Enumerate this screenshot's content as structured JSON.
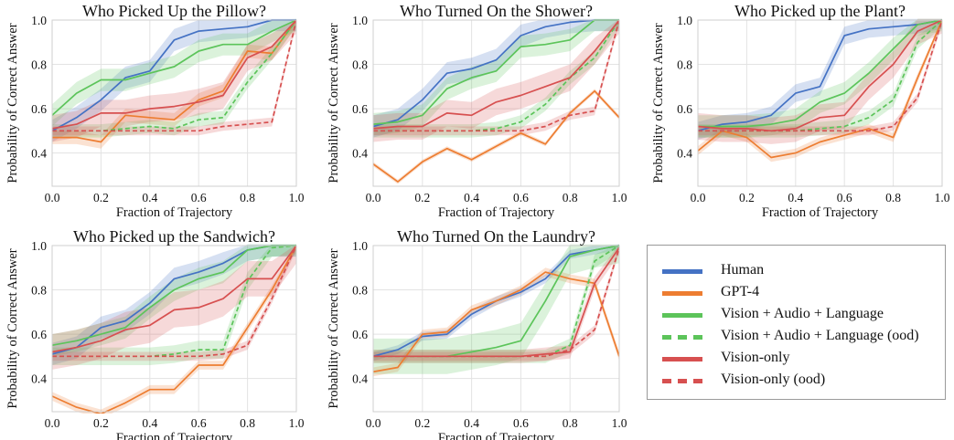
{
  "colors": {
    "Human": "#4472c4",
    "GPT-4": "#ed7d31",
    "Vision + Audio + Language": "#5cc45a",
    "Vision + Audio + Language (ood)": "#5cc45a",
    "Vision-only": "#d75050",
    "Vision-only (ood)": "#d75050"
  },
  "legend": {
    "placement": "bottom-right",
    "items": [
      {
        "label": "Human",
        "style": "solid",
        "color": "#4472c4"
      },
      {
        "label": "GPT-4",
        "style": "solid",
        "color": "#ed7d31"
      },
      {
        "label": "Vision + Audio + Language",
        "style": "solid",
        "color": "#5cc45a"
      },
      {
        "label": "Vision + Audio + Language (ood)",
        "style": "dashed",
        "color": "#5cc45a"
      },
      {
        "label": "Vision-only",
        "style": "solid",
        "color": "#d75050"
      },
      {
        "label": "Vision-only (ood)",
        "style": "dashed",
        "color": "#d75050"
      }
    ]
  },
  "chart_data": [
    {
      "type": "line",
      "title": "Who Picked Up the Pillow?",
      "xlabel": "Fraction of Trajectory",
      "ylabel": "Probability of Correct Answer",
      "xlim": [
        0,
        1
      ],
      "ylim": [
        0.25,
        1.0
      ],
      "xticks": [
        "0.0",
        "0.2",
        "0.4",
        "0.6",
        "0.8",
        "1.0"
      ],
      "yticks": [
        "0.4",
        "0.6",
        "0.8",
        "1.0"
      ],
      "grid": true,
      "x": [
        0,
        0.1,
        0.2,
        0.3,
        0.4,
        0.5,
        0.6,
        0.7,
        0.8,
        0.9,
        1.0
      ],
      "series": [
        {
          "name": "Human",
          "style": "solid",
          "values": [
            0.5,
            0.56,
            0.64,
            0.74,
            0.77,
            0.91,
            0.95,
            0.96,
            0.97,
            1.0,
            1.0
          ],
          "band": 0.05
        },
        {
          "name": "GPT-4",
          "style": "solid",
          "values": [
            0.47,
            0.47,
            0.45,
            0.57,
            0.56,
            0.55,
            0.64,
            0.68,
            0.86,
            0.85,
            1.0
          ],
          "band": 0.03
        },
        {
          "name": "Vision + Audio + Language",
          "style": "solid",
          "values": [
            0.57,
            0.67,
            0.73,
            0.73,
            0.76,
            0.79,
            0.86,
            0.89,
            0.89,
            0.95,
            1.0
          ],
          "band": 0.05
        },
        {
          "name": "Vision + Audio + Language (ood)",
          "style": "dashed",
          "values": [
            0.5,
            0.5,
            0.5,
            0.51,
            0.52,
            0.51,
            0.55,
            0.56,
            0.72,
            0.85,
            1.0
          ],
          "band": 0.03
        },
        {
          "name": "Vision-only",
          "style": "solid",
          "values": [
            0.51,
            0.53,
            0.58,
            0.58,
            0.6,
            0.61,
            0.63,
            0.66,
            0.83,
            0.88,
            1.0
          ],
          "band": 0.06
        },
        {
          "name": "Vision-only (ood)",
          "style": "dashed",
          "values": [
            0.5,
            0.5,
            0.5,
            0.5,
            0.5,
            0.5,
            0.5,
            0.52,
            0.53,
            0.54,
            1.0
          ],
          "band": 0.02
        }
      ]
    },
    {
      "type": "line",
      "title": "Who Turned On the Shower?",
      "xlabel": "Fraction of Trajectory",
      "ylabel": "Probability of Correct Answer",
      "xlim": [
        0,
        1
      ],
      "ylim": [
        0.25,
        1.0
      ],
      "xticks": [
        "0.0",
        "0.2",
        "0.4",
        "0.6",
        "0.8",
        "1.0"
      ],
      "yticks": [
        "0.4",
        "0.6",
        "0.8",
        "1.0"
      ],
      "grid": true,
      "x": [
        0,
        0.1,
        0.2,
        0.3,
        0.4,
        0.5,
        0.6,
        0.7,
        0.8,
        0.9,
        1.0
      ],
      "series": [
        {
          "name": "Human",
          "style": "solid",
          "values": [
            0.52,
            0.55,
            0.64,
            0.76,
            0.78,
            0.82,
            0.93,
            0.97,
            0.99,
            1.0,
            1.0
          ],
          "band": 0.05
        },
        {
          "name": "GPT-4",
          "style": "solid",
          "values": [
            0.35,
            0.27,
            0.36,
            0.42,
            0.37,
            0.43,
            0.49,
            0.44,
            0.58,
            0.68,
            0.56
          ],
          "band": 0.01
        },
        {
          "name": "Vision + Audio + Language",
          "style": "solid",
          "values": [
            0.53,
            0.54,
            0.57,
            0.69,
            0.74,
            0.77,
            0.88,
            0.89,
            0.91,
            1.0,
            1.0
          ],
          "band": 0.05
        },
        {
          "name": "Vision + Audio + Language (ood)",
          "style": "dashed",
          "values": [
            0.5,
            0.5,
            0.5,
            0.5,
            0.5,
            0.51,
            0.54,
            0.62,
            0.74,
            0.83,
            1.0
          ],
          "band": 0.03
        },
        {
          "name": "Vision-only",
          "style": "solid",
          "values": [
            0.51,
            0.52,
            0.52,
            0.58,
            0.57,
            0.63,
            0.66,
            0.7,
            0.74,
            0.86,
            1.0
          ],
          "band": 0.06
        },
        {
          "name": "Vision-only (ood)",
          "style": "dashed",
          "values": [
            0.5,
            0.5,
            0.5,
            0.5,
            0.5,
            0.5,
            0.5,
            0.52,
            0.57,
            0.59,
            1.0
          ],
          "band": 0.02
        }
      ]
    },
    {
      "type": "line",
      "title": "Who Picked up the Plant?",
      "xlabel": "Fraction of Trajectory",
      "ylabel": "Probability of Correct Answer",
      "xlim": [
        0,
        1
      ],
      "ylim": [
        0.25,
        1.0
      ],
      "xticks": [
        "0.0",
        "0.2",
        "0.4",
        "0.6",
        "0.8",
        "1.0"
      ],
      "yticks": [
        "0.4",
        "0.6",
        "0.8",
        "1.0"
      ],
      "grid": true,
      "x": [
        0,
        0.1,
        0.2,
        0.3,
        0.4,
        0.5,
        0.6,
        0.7,
        0.8,
        0.9,
        1.0
      ],
      "series": [
        {
          "name": "Human",
          "style": "solid",
          "values": [
            0.5,
            0.53,
            0.54,
            0.57,
            0.67,
            0.7,
            0.93,
            0.96,
            0.97,
            0.98,
            1.0
          ],
          "band": 0.04
        },
        {
          "name": "GPT-4",
          "style": "solid",
          "values": [
            0.41,
            0.5,
            0.47,
            0.38,
            0.4,
            0.45,
            0.48,
            0.51,
            0.47,
            0.74,
            1.0
          ],
          "band": 0.02
        },
        {
          "name": "Vision + Audio + Language",
          "style": "solid",
          "values": [
            0.52,
            0.52,
            0.52,
            0.53,
            0.55,
            0.63,
            0.67,
            0.76,
            0.87,
            0.98,
            1.0
          ],
          "band": 0.05
        },
        {
          "name": "Vision + Audio + Language (ood)",
          "style": "dashed",
          "values": [
            0.5,
            0.5,
            0.5,
            0.5,
            0.5,
            0.51,
            0.52,
            0.56,
            0.64,
            0.9,
            1.0
          ],
          "band": 0.03
        },
        {
          "name": "Vision-only",
          "style": "solid",
          "values": [
            0.52,
            0.51,
            0.51,
            0.5,
            0.51,
            0.56,
            0.57,
            0.7,
            0.8,
            0.95,
            1.0
          ],
          "band": 0.06
        },
        {
          "name": "Vision-only (ood)",
          "style": "dashed",
          "values": [
            0.5,
            0.5,
            0.5,
            0.5,
            0.5,
            0.5,
            0.5,
            0.5,
            0.52,
            0.65,
            1.0
          ],
          "band": 0.02
        }
      ]
    },
    {
      "type": "line",
      "title": "Who Picked up the Sandwich?",
      "xlabel": "Fraction of Trajectory",
      "ylabel": "Probability of Correct Answer",
      "xlim": [
        0,
        1
      ],
      "ylim": [
        0.25,
        1.0
      ],
      "xticks": [
        "0.0",
        "0.2",
        "0.4",
        "0.6",
        "0.8",
        "1.0"
      ],
      "yticks": [
        "0.4",
        "0.6",
        "0.8",
        "1.0"
      ],
      "grid": true,
      "x": [
        0,
        0.1,
        0.2,
        0.3,
        0.4,
        0.5,
        0.6,
        0.7,
        0.8,
        0.9,
        1.0
      ],
      "series": [
        {
          "name": "Human",
          "style": "solid",
          "values": [
            0.51,
            0.54,
            0.63,
            0.66,
            0.74,
            0.85,
            0.88,
            0.92,
            0.98,
            1.0,
            1.0
          ],
          "band": 0.05
        },
        {
          "name": "GPT-4",
          "style": "solid",
          "values": [
            0.32,
            0.27,
            0.24,
            0.29,
            0.35,
            0.35,
            0.46,
            0.46,
            0.63,
            0.8,
            1.0
          ],
          "band": 0.02
        },
        {
          "name": "Vision + Audio + Language",
          "style": "solid",
          "values": [
            0.55,
            0.57,
            0.6,
            0.63,
            0.72,
            0.8,
            0.85,
            0.88,
            0.98,
            1.0,
            1.0
          ],
          "band": 0.05
        },
        {
          "name": "Vision + Audio + Language (ood)",
          "style": "dashed",
          "values": [
            0.5,
            0.5,
            0.5,
            0.5,
            0.5,
            0.51,
            0.53,
            0.53,
            0.84,
            0.99,
            1.0
          ],
          "band": 0.04
        },
        {
          "name": "Vision-only",
          "style": "solid",
          "values": [
            0.52,
            0.54,
            0.57,
            0.62,
            0.64,
            0.71,
            0.72,
            0.76,
            0.85,
            0.85,
            1.0
          ],
          "band": 0.08
        },
        {
          "name": "Vision-only (ood)",
          "style": "dashed",
          "values": [
            0.5,
            0.5,
            0.5,
            0.5,
            0.5,
            0.5,
            0.5,
            0.51,
            0.55,
            0.76,
            1.0
          ],
          "band": 0.02
        }
      ]
    },
    {
      "type": "line",
      "title": "Who Turned On the Laundry?",
      "xlabel": "Fraction of Trajectory",
      "ylabel": "Probability of Correct Answer",
      "xlim": [
        0,
        1
      ],
      "ylim": [
        0.25,
        1.0
      ],
      "xticks": [
        "0.0",
        "0.2",
        "0.4",
        "0.6",
        "0.8",
        "1.0"
      ],
      "yticks": [
        "0.4",
        "0.6",
        "0.8",
        "1.0"
      ],
      "grid": true,
      "x": [
        0,
        0.1,
        0.2,
        0.3,
        0.4,
        0.5,
        0.6,
        0.7,
        0.8,
        0.9,
        1.0
      ],
      "series": [
        {
          "name": "Human",
          "style": "solid",
          "values": [
            0.5,
            0.53,
            0.59,
            0.6,
            0.69,
            0.75,
            0.79,
            0.85,
            0.96,
            0.98,
            1.0
          ],
          "band": 0.02
        },
        {
          "name": "GPT-4",
          "style": "solid",
          "values": [
            0.43,
            0.45,
            0.6,
            0.61,
            0.71,
            0.75,
            0.8,
            0.88,
            0.85,
            0.83,
            0.5
          ],
          "band": 0.02
        },
        {
          "name": "Vision + Audio + Language",
          "style": "solid",
          "values": [
            0.5,
            0.5,
            0.5,
            0.5,
            0.52,
            0.54,
            0.57,
            0.75,
            0.95,
            0.98,
            1.0
          ],
          "band": 0.08
        },
        {
          "name": "Vision + Audio + Language (ood)",
          "style": "dashed",
          "values": [
            0.5,
            0.5,
            0.5,
            0.5,
            0.5,
            0.5,
            0.5,
            0.5,
            0.55,
            0.93,
            1.0
          ],
          "band": 0.03
        },
        {
          "name": "Vision-only",
          "style": "solid",
          "values": [
            0.5,
            0.5,
            0.5,
            0.5,
            0.5,
            0.5,
            0.5,
            0.51,
            0.52,
            0.83,
            0.99
          ],
          "band": 0.03
        },
        {
          "name": "Vision-only (ood)",
          "style": "dashed",
          "values": [
            0.5,
            0.5,
            0.5,
            0.5,
            0.5,
            0.5,
            0.5,
            0.5,
            0.53,
            0.62,
            0.99
          ],
          "band": 0.02
        }
      ]
    }
  ]
}
